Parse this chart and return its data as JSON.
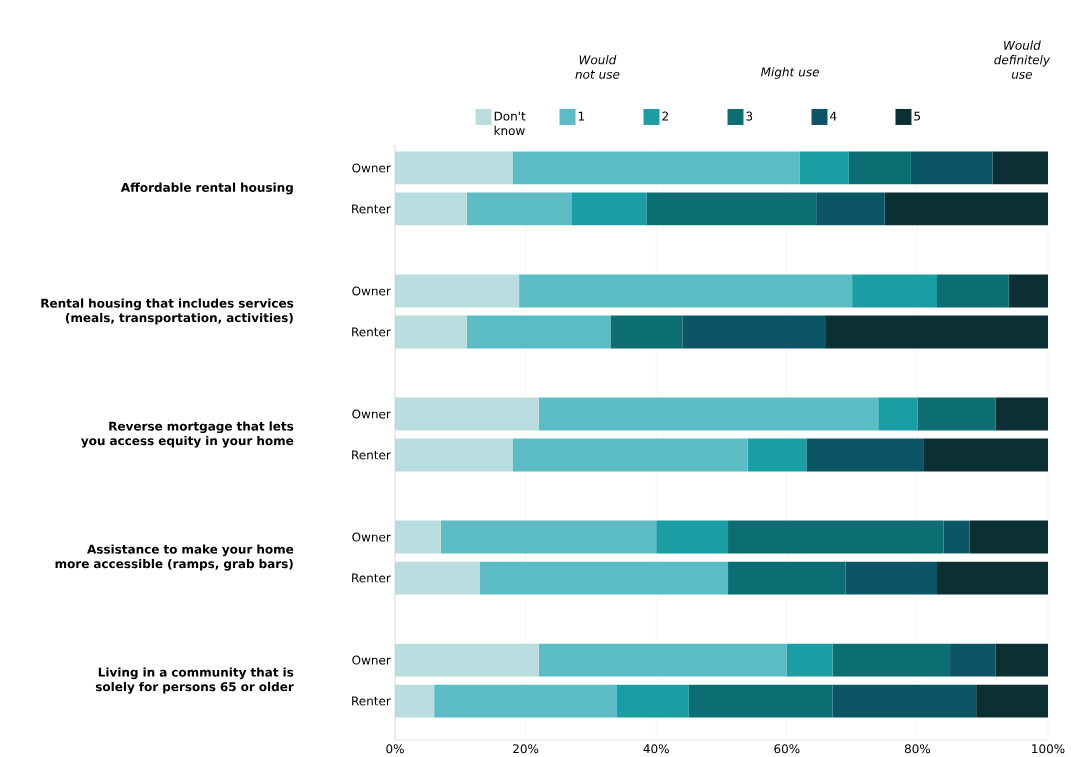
{
  "chart_data": {
    "type": "bar",
    "orientation": "horizontal",
    "stacked": true,
    "categories": [
      "Owner",
      "Renter",
      "Owner",
      "Renter",
      "Owner",
      "Renter",
      "Owner",
      "Renter",
      "Owner",
      "Renter"
    ],
    "series": [
      {
        "name": "Don't know",
        "color": "#b9dcdf",
        "values": [
          18,
          11,
          19,
          11,
          22,
          18,
          7,
          13,
          22,
          6
        ]
      },
      {
        "name": "1",
        "color": "#5bbcc6",
        "values": [
          44,
          16,
          51,
          22,
          52,
          36,
          33,
          38,
          38,
          28
        ]
      },
      {
        "name": "2",
        "color": "#1a9ea3",
        "values": [
          7.5,
          11.5,
          13,
          0,
          6,
          9,
          11,
          0,
          7,
          11
        ]
      },
      {
        "name": "3",
        "color": "#0c6e73",
        "values": [
          9.5,
          26,
          11,
          11,
          12,
          0,
          33,
          18,
          18,
          22
        ]
      },
      {
        "name": "4",
        "color": "#0b5566",
        "values": [
          12.5,
          10.5,
          0,
          22,
          0,
          18,
          4,
          14,
          7,
          22
        ]
      },
      {
        "name": "5",
        "color": "#0b2f33",
        "values": [
          8.5,
          25,
          6,
          34,
          8,
          19,
          12,
          17,
          8,
          11
        ]
      }
    ],
    "xlim": [
      0,
      100
    ],
    "xticks": [
      {
        "value": 0,
        "label": "0%"
      },
      {
        "value": 20,
        "label": "20%"
      },
      {
        "value": 40,
        "label": "40%"
      },
      {
        "value": 60,
        "label": "60%"
      },
      {
        "value": 80,
        "label": "80%"
      },
      {
        "value": 100,
        "label": "100%"
      }
    ],
    "grid": "x",
    "legend": "top",
    "annotations": [
      "Affordable rental housing",
      "Rental housing that includes services (meals, transportation, activities)",
      "Reverse mortgage that lets you access equity in your home",
      "Assistance to make your home more accessible (ramps, grab bars)",
      "Living in a community that is solely for persons 65 or older",
      "Would not use",
      "Might use",
      "Would definitely use"
    ]
  }
}
